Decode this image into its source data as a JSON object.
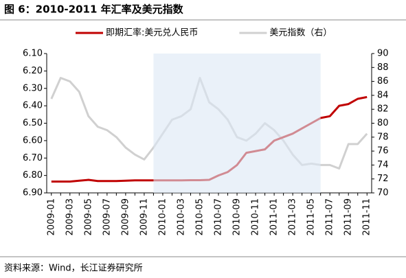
{
  "chart_data": {
    "type": "line",
    "title": "图 6：2010-2011 年汇率及美元指数",
    "source": "资料来源：Wind，长江证券研究所",
    "categories": [
      "2009-01",
      null,
      "2009-03",
      null,
      "2009-05",
      null,
      "2009-07",
      null,
      "2009-09",
      null,
      "2009-11",
      null,
      "2010-01",
      null,
      "2010-03",
      null,
      "2010-05",
      null,
      "2010-07",
      null,
      "2010-09",
      null,
      "2010-11",
      null,
      "2011-01",
      null,
      "2011-03",
      null,
      "2011-05",
      null,
      "2011-07",
      null,
      "2011-09",
      null,
      "2011-11"
    ],
    "series": [
      {
        "name": "即期汇率:美元兑人民币",
        "color": "#c00000",
        "axis": "y",
        "values": [
          6.835,
          6.835,
          6.835,
          6.83,
          6.825,
          6.832,
          6.832,
          6.832,
          6.83,
          6.828,
          6.828,
          6.828,
          6.828,
          6.828,
          6.828,
          6.827,
          6.827,
          6.825,
          6.8,
          6.78,
          6.74,
          6.67,
          6.66,
          6.65,
          6.6,
          6.58,
          6.56,
          6.53,
          6.5,
          6.47,
          6.46,
          6.4,
          6.39,
          6.36,
          6.35
        ]
      },
      {
        "name": "美元指数（右）",
        "color": "#d0d0d0",
        "axis": "y2",
        "values": [
          83.5,
          86.5,
          86,
          84.5,
          81,
          79.5,
          79,
          78,
          76.5,
          75.5,
          74.8,
          76.5,
          78.5,
          80.5,
          81,
          82,
          86.5,
          83,
          82,
          80.5,
          78,
          77.5,
          78.5,
          80,
          79,
          77.5,
          75.5,
          74,
          74.2,
          74,
          74,
          73.5,
          77,
          77,
          78.5
        ]
      }
    ],
    "ylim": [
      6.9,
      6.1
    ],
    "yticks": [
      {
        "value": 6.1,
        "label": "6.10"
      },
      {
        "value": 6.2,
        "label": "6.20"
      },
      {
        "value": 6.3,
        "label": "6.30"
      },
      {
        "value": 6.4,
        "label": "6.40"
      },
      {
        "value": 6.5,
        "label": "6.50"
      },
      {
        "value": 6.6,
        "label": "6.60"
      },
      {
        "value": 6.7,
        "label": "6.70"
      },
      {
        "value": 6.8,
        "label": "6.80"
      },
      {
        "value": 6.9,
        "label": "6.90"
      }
    ],
    "y2lim": [
      70,
      90
    ],
    "y2ticks": [
      70,
      72,
      74,
      76,
      78,
      80,
      82,
      84,
      86,
      88,
      90
    ],
    "legend": "top"
  }
}
